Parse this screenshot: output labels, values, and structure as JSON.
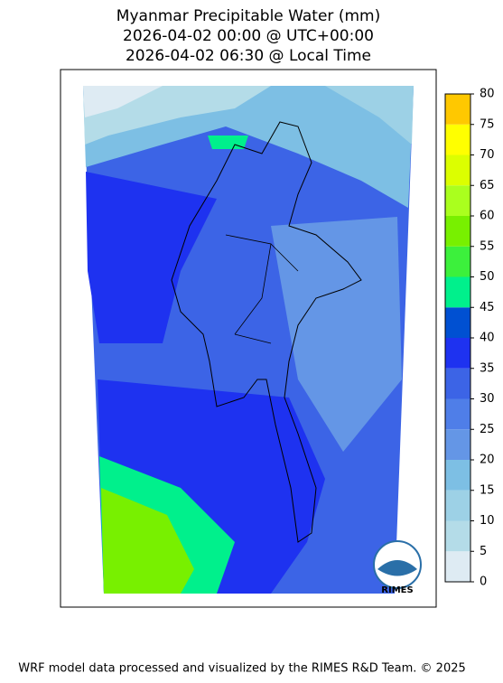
{
  "title": [
    "Myanmar Precipitable Water (mm)",
    "2026-04-02 00:00 @ UTC+00:00",
    "2026-04-02 06:30 @ Local Time"
  ],
  "colorbar": {
    "ticks": [
      0,
      5,
      10,
      15,
      20,
      25,
      30,
      35,
      40,
      45,
      50,
      55,
      60,
      65,
      70,
      75,
      80
    ],
    "colors": [
      "#deebf3",
      "#b4dce8",
      "#9dd1e6",
      "#7dbfe4",
      "#6496e6",
      "#4f7ee8",
      "#3c64e6",
      "#1e32f0",
      "#0050d2",
      "#00f08c",
      "#3cf03c",
      "#78f000",
      "#aaff1e",
      "#dcff00",
      "#ffff00",
      "#ffc800"
    ]
  },
  "logo": "RIMES",
  "footer": "WRF model data processed and visualized by the RIMES R&D Team. © 2025"
}
